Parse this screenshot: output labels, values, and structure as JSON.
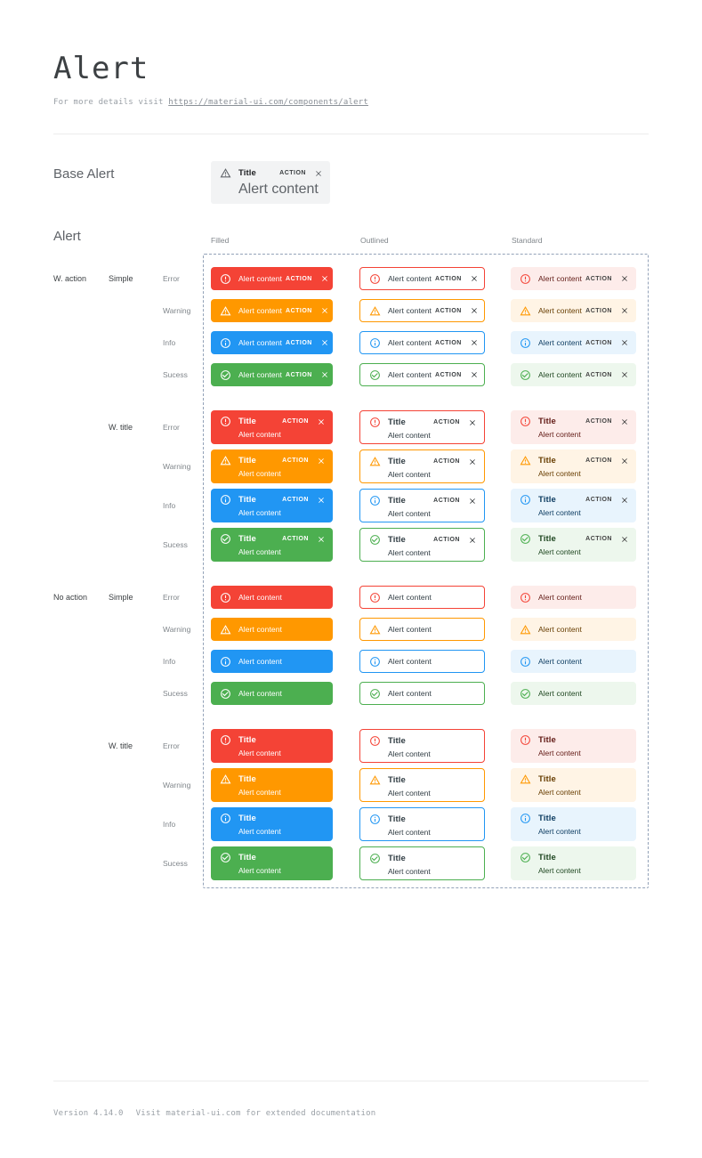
{
  "page": {
    "title": "Alert",
    "subtitle_prefix": "For more details visit ",
    "subtitle_link": "https://material-ui.com/components/alert"
  },
  "base_alert": {
    "heading": "Base Alert",
    "title": "Title",
    "content": "Alert content",
    "action_label": "ACTION",
    "bg": "#f2f3f4"
  },
  "alert_grid": {
    "heading": "Alert",
    "columns": [
      "Filled",
      "Outlined",
      "Standard"
    ],
    "title_text": "Title",
    "content_text": "Alert content",
    "action_label": "ACTION",
    "dashed_border_color": "#93a2b8",
    "groups": [
      {
        "label": "W. action",
        "sub": "Simple",
        "with_action": true,
        "with_title": false
      },
      {
        "label": "",
        "sub": "W. title",
        "with_action": true,
        "with_title": true
      },
      {
        "label": "No action",
        "sub": "Simple",
        "with_action": false,
        "with_title": false
      },
      {
        "label": "",
        "sub": "W. title",
        "with_action": false,
        "with_title": true
      }
    ],
    "severities": [
      {
        "id": "error",
        "label": "Error",
        "icon": "error-outline-icon",
        "main": "#f44336",
        "standard_bg": "#fdecea",
        "standard_text": "#611a15"
      },
      {
        "id": "warning",
        "label": "Warning",
        "icon": "warning-triangle-icon",
        "main": "#ff9800",
        "standard_bg": "#fff4e5",
        "standard_text": "#663c00"
      },
      {
        "id": "info",
        "label": "Info",
        "icon": "info-outline-icon",
        "main": "#2196f3",
        "standard_bg": "#e8f4fd",
        "standard_text": "#0d3c61"
      },
      {
        "id": "success",
        "label": "Sucess",
        "icon": "check-circle-icon",
        "main": "#4caf50",
        "standard_bg": "#edf7ed",
        "standard_text": "#1e4620"
      }
    ]
  },
  "footer": {
    "version": "Version 4.14.0",
    "note": "Visit material-ui.com for extended documentation"
  }
}
